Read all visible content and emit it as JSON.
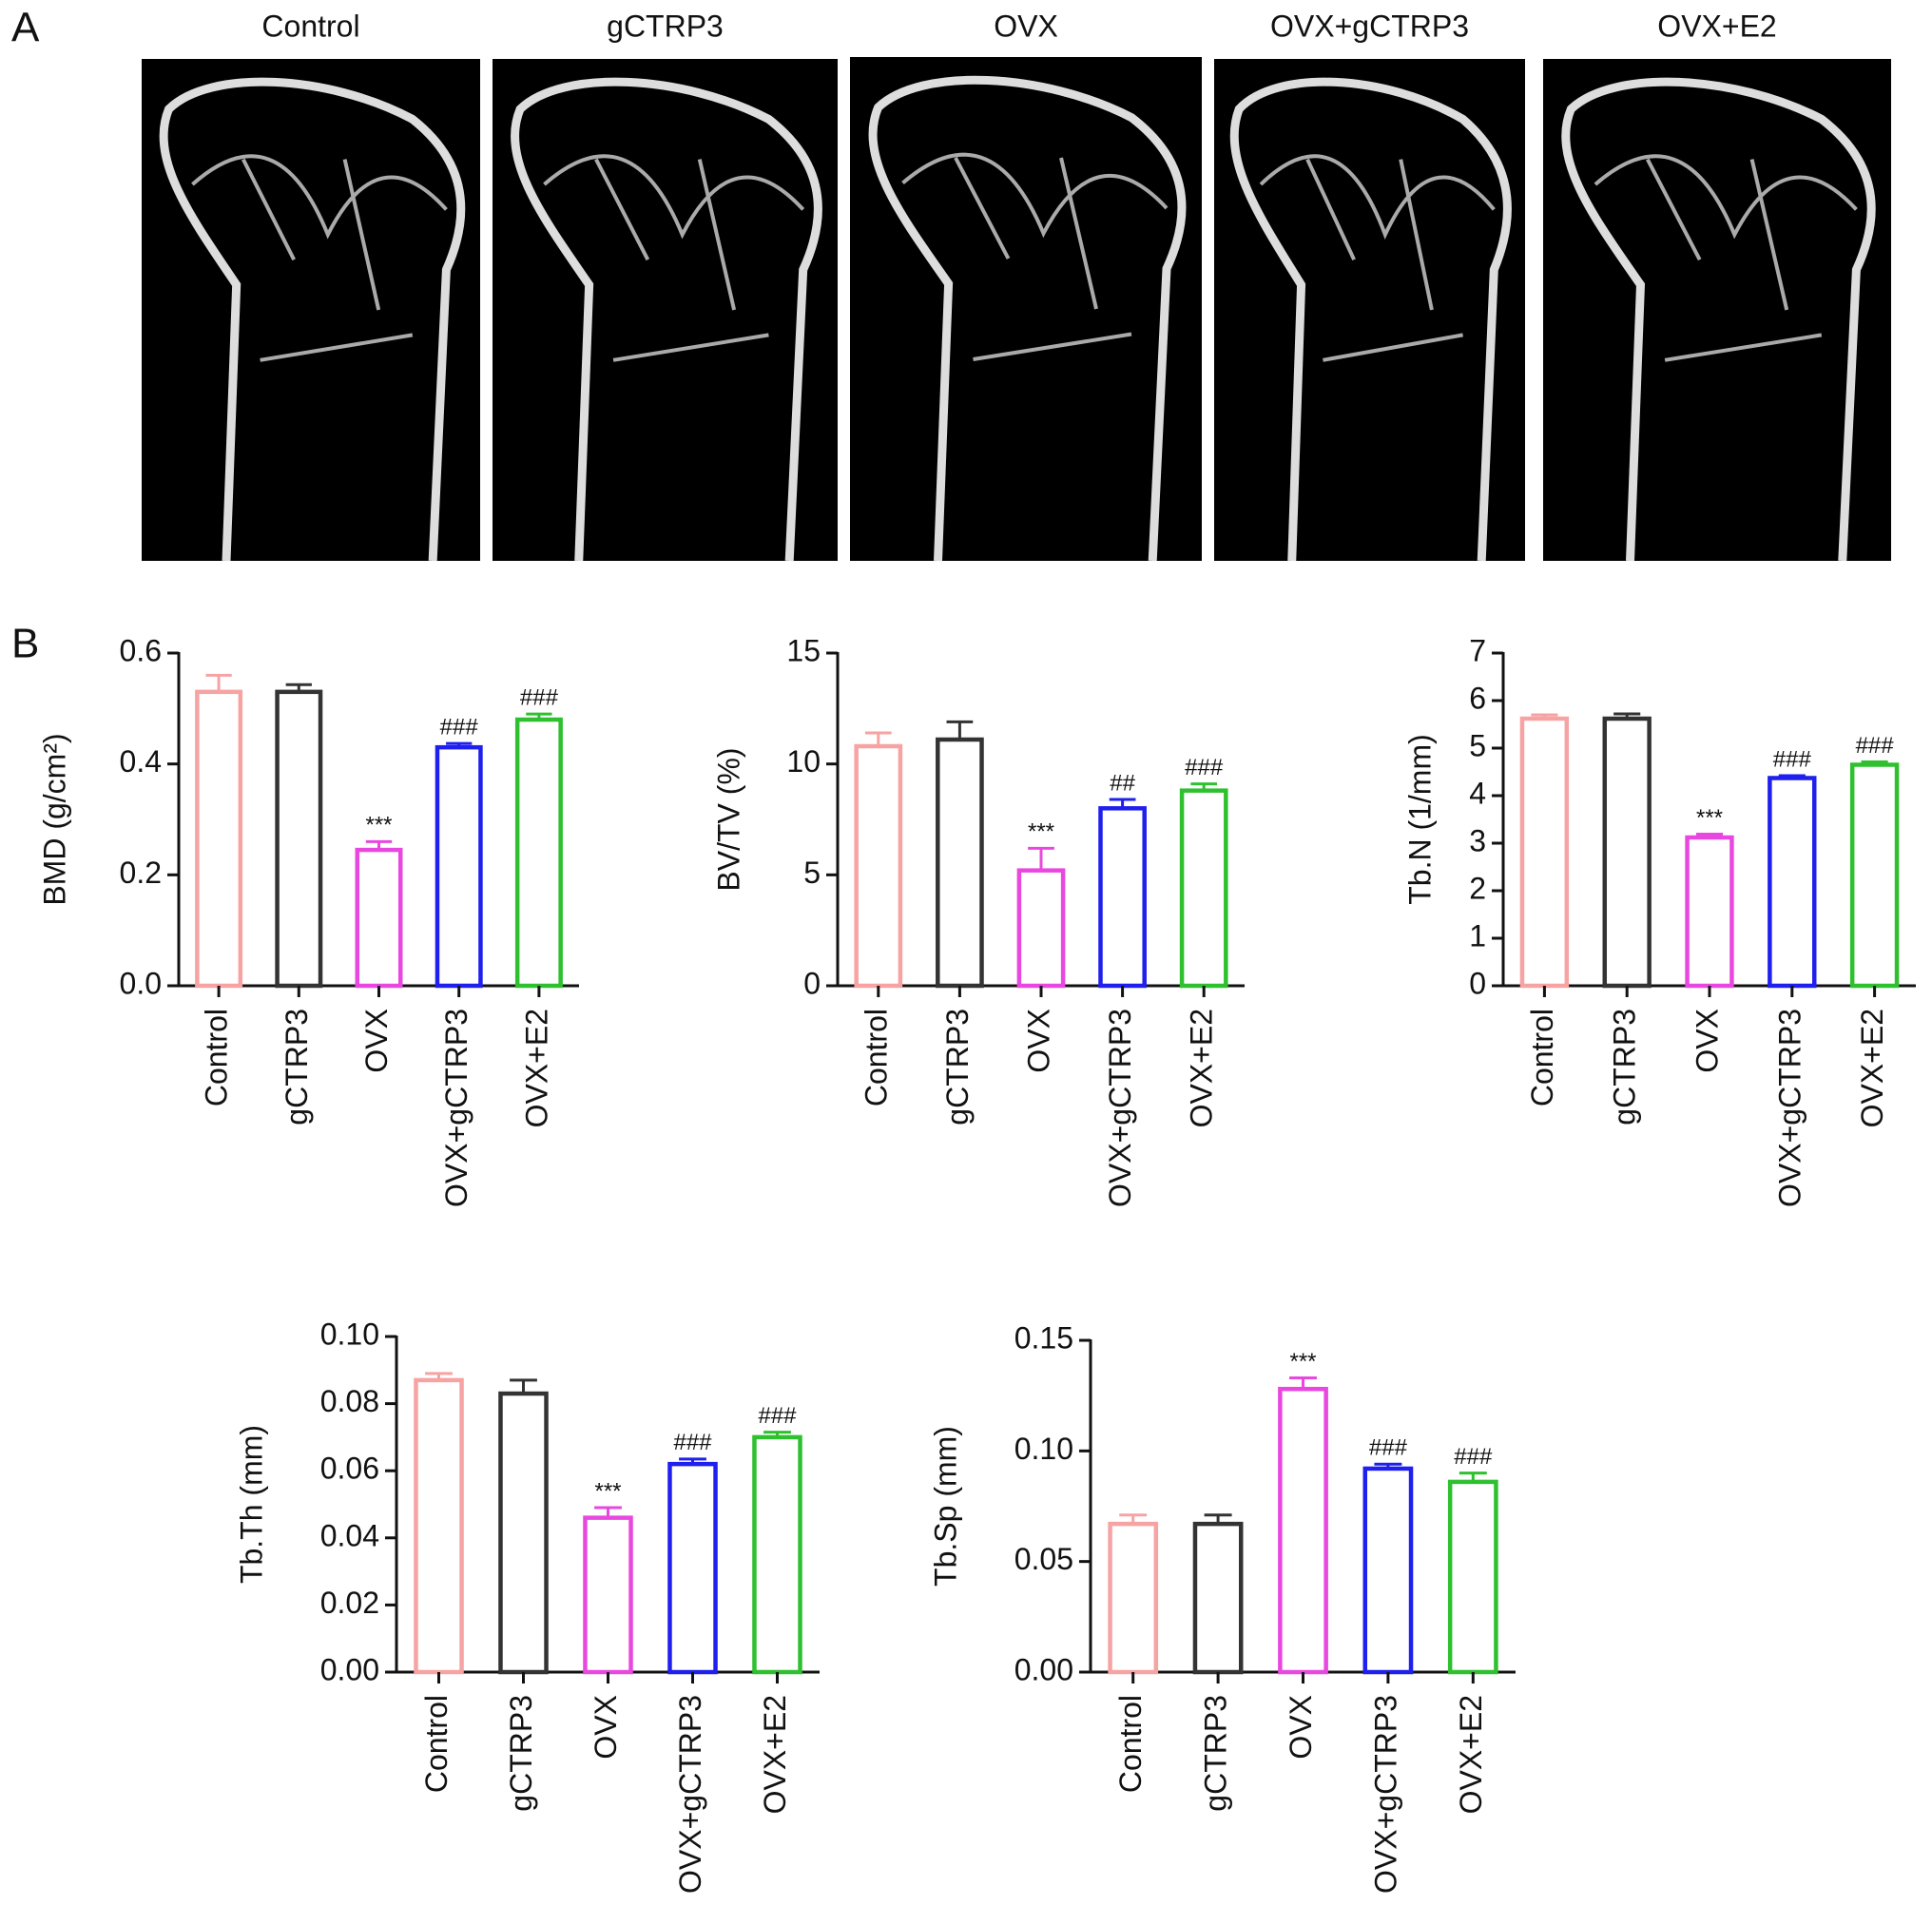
{
  "panel_a": {
    "label": "A",
    "groups": [
      "Control",
      "gCTRP3",
      "OVX",
      "OVX+gCTRP3",
      "OVX+E2"
    ]
  },
  "panel_b": {
    "label": "B"
  },
  "chart_data": [
    {
      "type": "bar",
      "ylabel": "BMD (g/cm²)",
      "categories": [
        "Control",
        "gCTRP3",
        "OVX",
        "OVX+gCTRP3",
        "OVX+E2"
      ],
      "values": [
        0.53,
        0.53,
        0.245,
        0.43,
        0.48
      ],
      "errors": [
        0.03,
        0.013,
        0.015,
        0.007,
        0.01
      ],
      "colors": [
        "#f7a3a3",
        "#333333",
        "#e848e0",
        "#1f1fee",
        "#2fc02f"
      ],
      "significance": [
        null,
        null,
        "***",
        "###",
        "###"
      ],
      "ylim": [
        0,
        0.6
      ],
      "yticks": [
        {
          "value": 0,
          "label": "0.0"
        },
        0.2,
        0.4,
        0.6
      ]
    },
    {
      "type": "bar",
      "ylabel": "BV/TV (%)",
      "categories": [
        "Control",
        "gCTRP3",
        "OVX",
        "OVX+gCTRP3",
        "OVX+E2"
      ],
      "values": [
        10.8,
        11.1,
        5.2,
        8.0,
        8.8
      ],
      "errors": [
        0.6,
        0.8,
        1.0,
        0.4,
        0.3
      ],
      "colors": [
        "#f7a3a3",
        "#333333",
        "#e848e0",
        "#1f1fee",
        "#2fc02f"
      ],
      "significance": [
        null,
        null,
        "***",
        "##",
        "###"
      ],
      "ylim": [
        0,
        15
      ],
      "yticks": [
        0,
        5,
        10,
        15
      ]
    },
    {
      "type": "bar",
      "ylabel": "Tb.N (1/mm)",
      "categories": [
        "Control",
        "gCTRP3",
        "OVX",
        "OVX+gCTRP3",
        "OVX+E2"
      ],
      "values": [
        5.62,
        5.62,
        3.12,
        4.37,
        4.65
      ],
      "errors": [
        0.08,
        0.1,
        0.07,
        0.05,
        0.06
      ],
      "colors": [
        "#f7a3a3",
        "#333333",
        "#e848e0",
        "#1f1fee",
        "#2fc02f"
      ],
      "significance": [
        null,
        null,
        "***",
        "###",
        "###"
      ],
      "ylim": [
        0,
        7
      ],
      "yticks": [
        0,
        1,
        2,
        3,
        4,
        5,
        6,
        7
      ]
    },
    {
      "type": "bar",
      "ylabel": "Tb.Th (mm)",
      "categories": [
        "Control",
        "gCTRP3",
        "OVX",
        "OVX+gCTRP3",
        "OVX+E2"
      ],
      "values": [
        0.087,
        0.083,
        0.046,
        0.062,
        0.07
      ],
      "errors": [
        0.002,
        0.004,
        0.003,
        0.0015,
        0.0015
      ],
      "colors": [
        "#f7a3a3",
        "#333333",
        "#e848e0",
        "#1f1fee",
        "#2fc02f"
      ],
      "significance": [
        null,
        null,
        "***",
        "###",
        "###"
      ],
      "ylim": [
        0,
        0.1
      ],
      "yticks": [
        {
          "value": 0,
          "label": "0.00"
        },
        0.02,
        0.04,
        0.06,
        0.08,
        {
          "value": 0.1,
          "label": "0.10"
        }
      ]
    },
    {
      "type": "bar",
      "ylabel": "Tb.Sp (mm)",
      "categories": [
        "Control",
        "gCTRP3",
        "OVX",
        "OVX+gCTRP3",
        "OVX+E2"
      ],
      "values": [
        0.067,
        0.067,
        0.128,
        0.092,
        0.086
      ],
      "errors": [
        0.004,
        0.004,
        0.005,
        0.002,
        0.004
      ],
      "colors": [
        "#f7a3a3",
        "#333333",
        "#e848e0",
        "#1f1fee",
        "#2fc02f"
      ],
      "significance": [
        null,
        null,
        "***",
        "###",
        "###"
      ],
      "ylim": [
        0,
        0.15
      ],
      "yticks": [
        {
          "value": 0,
          "label": "0.00"
        },
        0.05,
        {
          "value": 0.1,
          "label": "0.10"
        },
        0.15
      ]
    }
  ]
}
